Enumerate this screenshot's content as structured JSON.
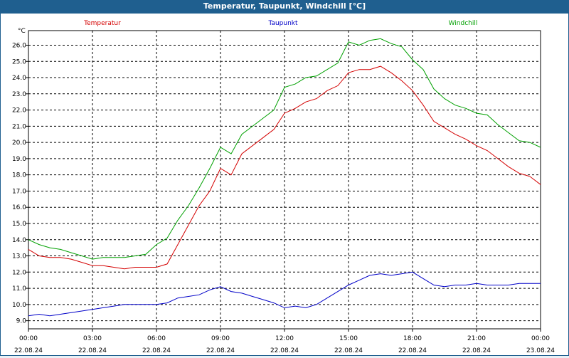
{
  "chart_data": {
    "type": "line",
    "title": "Temperatur, Taupunkt, Windchill [°C]",
    "yunit": "°C",
    "ylim": [
      8.5,
      26.9
    ],
    "yticks": [
      9.0,
      10.0,
      11.0,
      12.0,
      13.0,
      14.0,
      15.0,
      16.0,
      17.0,
      18.0,
      19.0,
      20.0,
      21.0,
      22.0,
      23.0,
      24.0,
      25.0,
      26.0
    ],
    "xlim_hours": [
      0,
      24
    ],
    "xticks": [
      {
        "time": "00:00",
        "date": "22.08.24"
      },
      {
        "time": "03:00",
        "date": "22.08.24"
      },
      {
        "time": "06:00",
        "date": "22.08.24"
      },
      {
        "time": "09:00",
        "date": "22.08.24"
      },
      {
        "time": "12:00",
        "date": "22.08.24"
      },
      {
        "time": "15:00",
        "date": "22.08.24"
      },
      {
        "time": "18:00",
        "date": "22.08.24"
      },
      {
        "time": "21:00",
        "date": "22.08.24"
      },
      {
        "time": "00:00",
        "date": "23.08.24"
      }
    ],
    "grid": true,
    "legend_position": "top",
    "series": [
      {
        "name": "Temperatur",
        "color": "#d40000",
        "x": [
          0,
          0.5,
          1,
          1.5,
          2,
          2.5,
          3,
          3.5,
          4,
          4.5,
          5,
          5.5,
          6,
          6.5,
          7,
          7.5,
          8,
          8.5,
          9,
          9.5,
          10,
          10.5,
          11,
          11.5,
          12,
          12.5,
          13,
          13.5,
          14,
          14.5,
          15,
          15.5,
          16,
          16.5,
          17,
          17.5,
          18,
          18.5,
          19,
          19.5,
          20,
          20.5,
          21,
          21.5,
          22,
          22.5,
          23,
          23.5,
          24
        ],
        "y": [
          13.4,
          13.0,
          12.9,
          12.9,
          12.8,
          12.6,
          12.4,
          12.4,
          12.3,
          12.2,
          12.3,
          12.3,
          12.3,
          12.5,
          13.7,
          14.9,
          16.1,
          17.0,
          18.4,
          18.0,
          19.3,
          19.8,
          20.3,
          20.8,
          21.8,
          22.1,
          22.5,
          22.7,
          23.2,
          23.5,
          24.3,
          24.5,
          24.5,
          24.7,
          24.3,
          23.8,
          23.2,
          22.3,
          21.3,
          20.9,
          20.5,
          20.2,
          19.8,
          19.5,
          19.0,
          18.5,
          18.1,
          17.9,
          17.4
        ]
      },
      {
        "name": "Taupunkt",
        "color": "#0000c8",
        "x": [
          0,
          0.5,
          1,
          1.5,
          2,
          2.5,
          3,
          3.5,
          4,
          4.5,
          5,
          5.5,
          6,
          6.5,
          7,
          7.5,
          8,
          8.5,
          9,
          9.5,
          10,
          10.5,
          11,
          11.5,
          12,
          12.5,
          13,
          13.5,
          14,
          14.5,
          15,
          15.5,
          16,
          16.5,
          17,
          17.5,
          18,
          18.5,
          19,
          19.5,
          20,
          20.5,
          21,
          21.5,
          22,
          22.5,
          23,
          23.5,
          24
        ],
        "y": [
          9.3,
          9.4,
          9.3,
          9.4,
          9.5,
          9.6,
          9.7,
          9.8,
          9.9,
          10.0,
          10.0,
          10.0,
          10.0,
          10.1,
          10.4,
          10.5,
          10.6,
          10.9,
          11.1,
          10.8,
          10.7,
          10.5,
          10.3,
          10.1,
          9.8,
          9.9,
          9.8,
          10.0,
          10.4,
          10.8,
          11.2,
          11.5,
          11.8,
          11.9,
          11.8,
          11.9,
          12.0,
          11.6,
          11.2,
          11.1,
          11.2,
          11.2,
          11.3,
          11.2,
          11.2,
          11.2,
          11.3,
          11.3,
          11.3
        ]
      },
      {
        "name": "Windchill",
        "color": "#00a000",
        "x": [
          0,
          0.5,
          1,
          1.5,
          2,
          2.5,
          3,
          3.5,
          4,
          4.5,
          5,
          5.5,
          6,
          6.5,
          7,
          7.5,
          8,
          8.5,
          9,
          9.5,
          10,
          10.5,
          11,
          11.5,
          12,
          12.5,
          13,
          13.5,
          14,
          14.5,
          15,
          15.5,
          16,
          16.5,
          17,
          17.5,
          18,
          18.5,
          19,
          19.5,
          20,
          20.5,
          21,
          21.5,
          22,
          22.5,
          23,
          23.5,
          24
        ],
        "y": [
          14.0,
          13.7,
          13.5,
          13.4,
          13.2,
          13.0,
          12.8,
          12.9,
          12.9,
          12.9,
          13.0,
          13.1,
          13.7,
          14.1,
          15.2,
          16.1,
          17.2,
          18.4,
          19.7,
          19.3,
          20.5,
          21.0,
          21.5,
          22.0,
          23.4,
          23.6,
          24.0,
          24.1,
          24.5,
          24.9,
          26.2,
          26.0,
          26.3,
          26.4,
          26.1,
          25.9,
          25.1,
          24.5,
          23.3,
          22.7,
          22.3,
          22.1,
          21.8,
          21.7,
          21.1,
          20.6,
          20.1,
          20.0,
          19.7
        ]
      }
    ]
  }
}
